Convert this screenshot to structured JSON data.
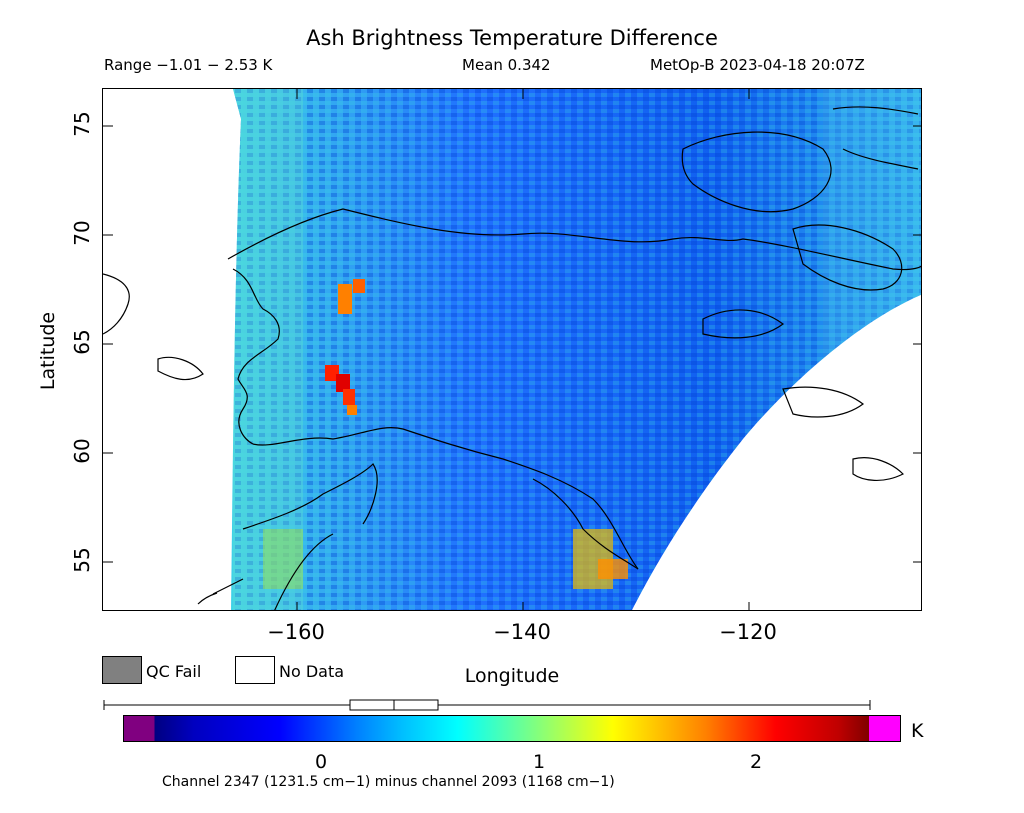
{
  "title": "Ash Brightness Temperature Difference",
  "range_text": "Range −1.01 − 2.53 K",
  "mean_text": "Mean 0.342",
  "satellite_text": "MetOp-B 2023-04-18 20:07Z",
  "axes": {
    "ylabel": "Latitude",
    "xlabel": "Longitude",
    "yticks": [
      "75",
      "70",
      "65",
      "60",
      "55"
    ],
    "xticks": [
      "−160",
      "−140",
      "−120"
    ]
  },
  "legend": {
    "qc_fail": "QC Fail",
    "no_data": "No Data",
    "qc_color": "#808080",
    "nodata_color": "#ffffff"
  },
  "colorbar": {
    "ticks": [
      "0",
      "1",
      "2"
    ],
    "unit": "K",
    "under_color": "#800080",
    "over_color": "#ff00ff"
  },
  "footnote": "Channel 2347 (1231.5 cm−1) minus channel 2093 (1168 cm−1)"
}
